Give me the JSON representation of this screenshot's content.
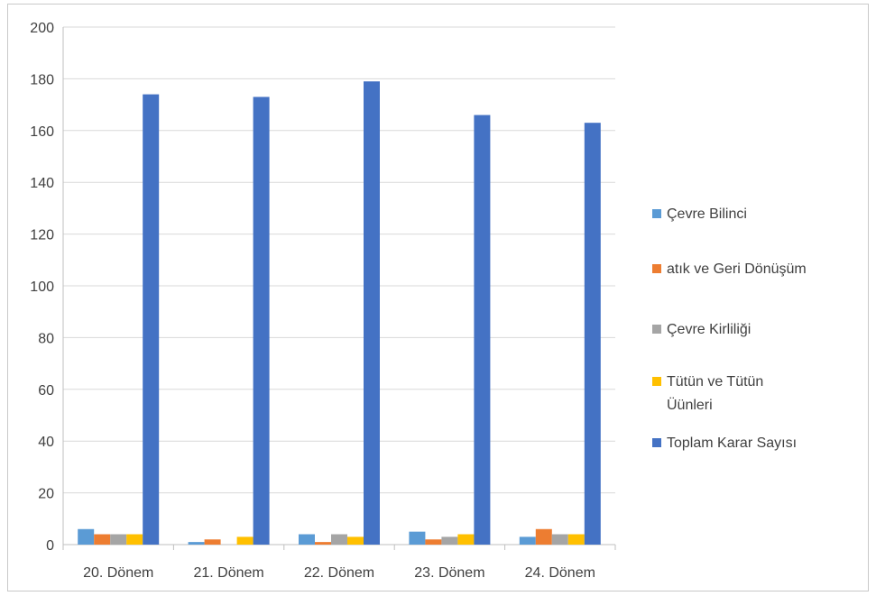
{
  "chart_data": {
    "type": "bar",
    "title": "",
    "xlabel": "",
    "ylabel": "",
    "ylim": [
      0,
      200
    ],
    "yticks": [
      0,
      20,
      40,
      60,
      80,
      100,
      120,
      140,
      160,
      180,
      200
    ],
    "grid": true,
    "legend_position": "right",
    "categories": [
      "20. Dönem",
      "21. Dönem",
      "22. Dönem",
      "23. Dönem",
      "24. Dönem"
    ],
    "series": [
      {
        "name": "Çevre Bilinci",
        "color": "#5B9BD5",
        "values": [
          6,
          1,
          4,
          5,
          3
        ]
      },
      {
        "name": "atık ve Geri Dönüşüm",
        "color": "#ED7D31",
        "values": [
          4,
          2,
          1,
          2,
          6
        ]
      },
      {
        "name": "Çevre Kirliliği",
        "color": "#A5A5A5",
        "values": [
          4,
          0,
          4,
          3,
          4
        ]
      },
      {
        "name": "Tütün ve Tütün Üünleri",
        "color": "#FFC000",
        "values": [
          4,
          3,
          3,
          4,
          4
        ]
      },
      {
        "name": "Toplam Karar Sayısı",
        "color": "#4472C4",
        "values": [
          174,
          173,
          179,
          166,
          163
        ]
      }
    ],
    "legend_lines": [
      [
        "Çevre Bilinci"
      ],
      [
        "atık ve Geri Dönüşüm"
      ],
      [
        "Çevre Kirliliği"
      ],
      [
        "Tütün ve Tütün",
        "Üünleri"
      ],
      [
        "Toplam Karar Sayısı"
      ]
    ]
  }
}
